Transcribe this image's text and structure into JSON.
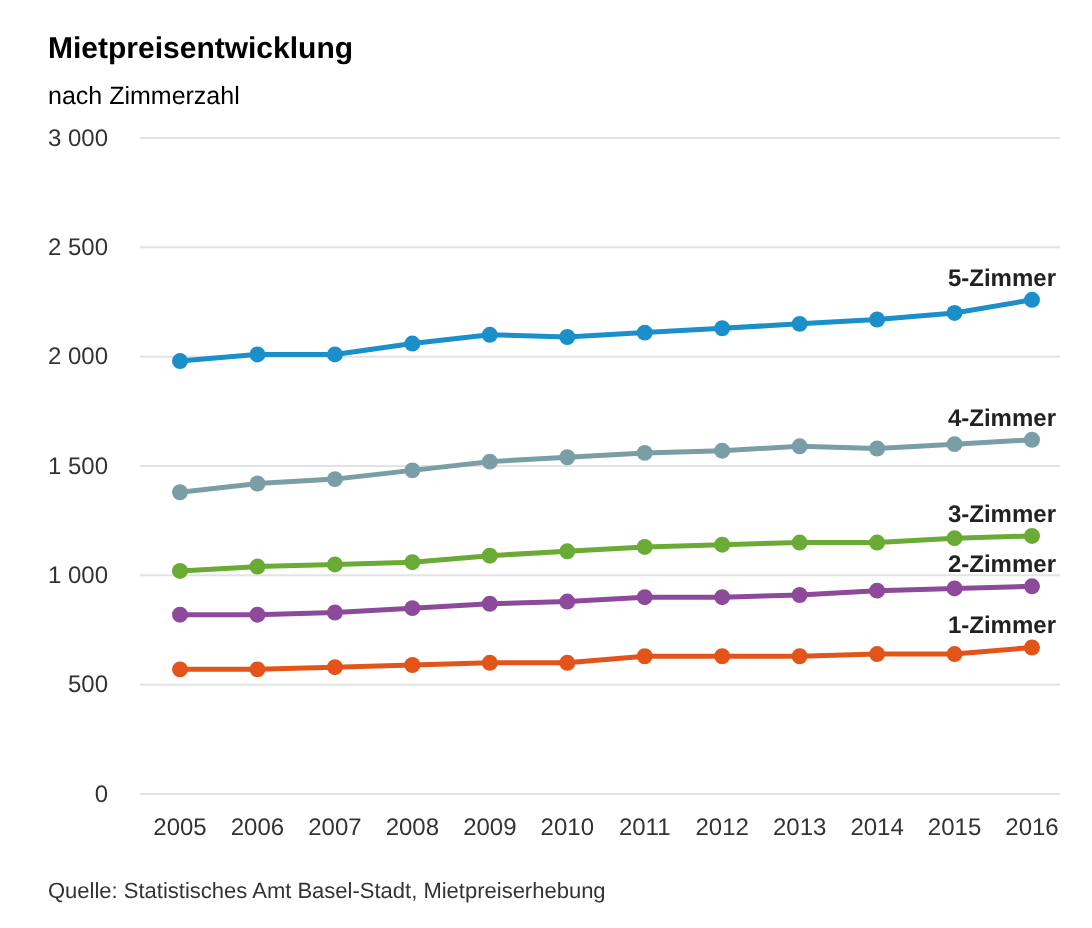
{
  "chart_data": {
    "type": "line",
    "title": "Mietpreisentwicklung",
    "subtitle": "nach Zimmerzahl",
    "annotations": [
      "Quelle: Statistisches Amt Basel-Stadt, Mietpreiserhebung"
    ],
    "categories": [
      "2005",
      "2006",
      "2007",
      "2008",
      "2009",
      "2010",
      "2011",
      "2012",
      "2013",
      "2014",
      "2015",
      "2016"
    ],
    "series": [
      {
        "name": "5-Zimmer",
        "color": "#1a8fc9",
        "values": [
          1980,
          2010,
          2010,
          2060,
          2100,
          2090,
          2110,
          2130,
          2150,
          2170,
          2200,
          2260
        ]
      },
      {
        "name": "4-Zimmer",
        "color": "#7a9ea6",
        "values": [
          1380,
          1420,
          1440,
          1480,
          1520,
          1540,
          1560,
          1570,
          1590,
          1580,
          1600,
          1620
        ]
      },
      {
        "name": "3-Zimmer",
        "color": "#6aab35",
        "values": [
          1020,
          1040,
          1050,
          1060,
          1090,
          1110,
          1130,
          1140,
          1150,
          1150,
          1170,
          1180
        ]
      },
      {
        "name": "2-Zimmer",
        "color": "#8e4a9a",
        "values": [
          820,
          820,
          830,
          850,
          870,
          880,
          900,
          900,
          910,
          930,
          940,
          950
        ]
      },
      {
        "name": "1-Zimmer",
        "color": "#e2541a",
        "values": [
          570,
          570,
          580,
          590,
          600,
          600,
          630,
          630,
          630,
          640,
          640,
          670
        ]
      }
    ],
    "ylim": [
      0,
      3000
    ],
    "yticks": [
      {
        "value": 0,
        "label": "0"
      },
      {
        "value": 500,
        "label": "500"
      },
      {
        "value": 1000,
        "label": "1 000"
      },
      {
        "value": 1500,
        "label": "1 500"
      },
      {
        "value": 2000,
        "label": "2 000"
      },
      {
        "value": 2500,
        "label": "2 500"
      },
      {
        "value": 3000,
        "label": "3 000"
      }
    ],
    "grid": "y",
    "legend": false,
    "marker": "circle",
    "line_style": "solid"
  }
}
